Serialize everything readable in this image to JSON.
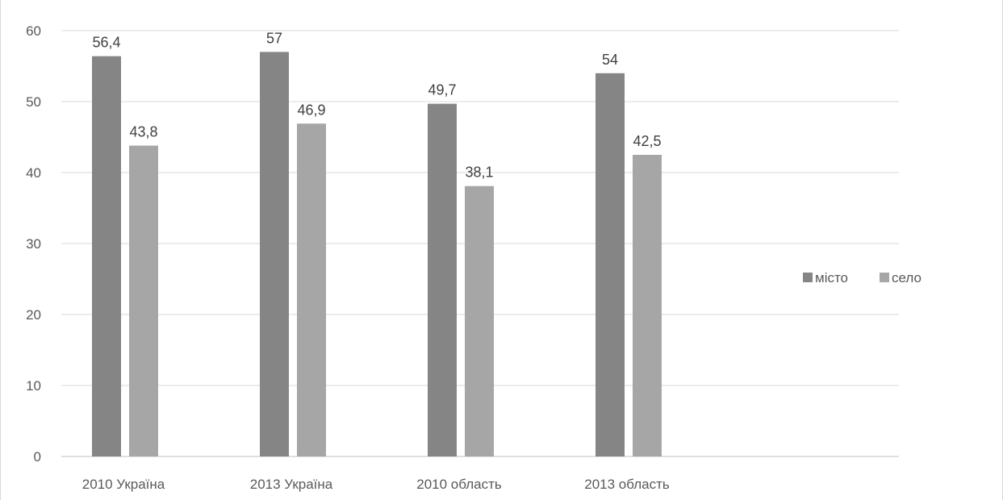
{
  "chart_data": {
    "type": "bar",
    "categories": [
      "2010 Україна",
      "2013 Україна",
      "2010 область",
      "2013 область"
    ],
    "series": [
      {
        "name": "місто",
        "values": [
          56.4,
          57,
          49.7,
          54
        ],
        "labels": [
          "56,4",
          "57",
          "49,7",
          "54"
        ],
        "color": "#858585"
      },
      {
        "name": "село",
        "values": [
          43.8,
          46.9,
          38.1,
          42.5
        ],
        "labels": [
          "43,8",
          "46,9",
          "38,1",
          "42,5"
        ],
        "color": "#a6a6a6"
      }
    ],
    "title": "",
    "xlabel": "",
    "ylabel": "",
    "ylim": [
      0,
      60
    ],
    "yticks": [
      0,
      10,
      20,
      30,
      40,
      50,
      60
    ],
    "grid": true,
    "legend_position": "right",
    "gridline_color": "#d9d9d9"
  }
}
